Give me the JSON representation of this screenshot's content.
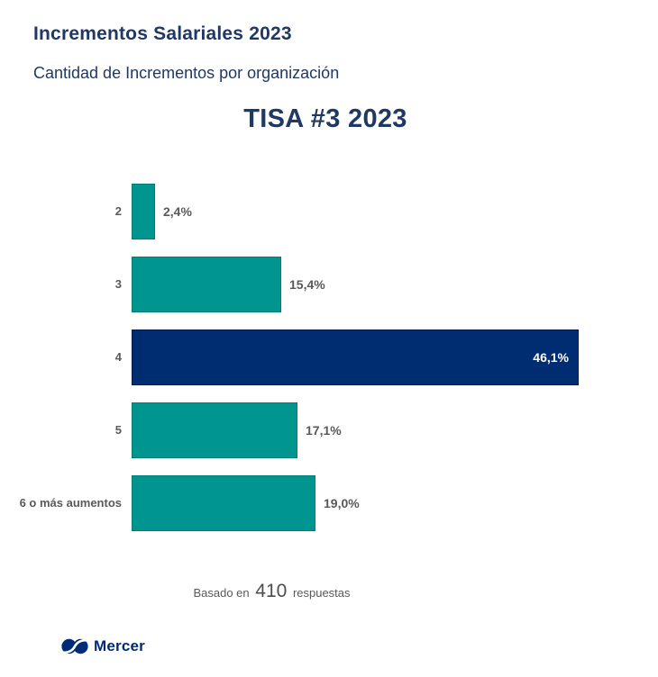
{
  "page": {
    "title": "Incrementos Salariales 2023",
    "subtitle": "Cantidad de Incrementos por organización"
  },
  "chart_data": {
    "type": "bar",
    "orientation": "horizontal",
    "title": "TISA #3 2023",
    "categories": [
      "2",
      "3",
      "4",
      "5",
      "6 o más aumentos"
    ],
    "values": [
      2.4,
      15.4,
      46.1,
      17.1,
      19.0
    ],
    "value_labels": [
      "2,4%",
      "15,4%",
      "46,1%",
      "17,1%",
      "19,0%"
    ],
    "highlight_index": 2,
    "xlim": [
      0,
      50
    ],
    "grid": false,
    "legend": false,
    "bar_color": "#00958F",
    "bar_border_color": "#007C77",
    "highlight_color": "#002D72",
    "highlight_border_color": "#001A4E",
    "category_label_color": "#595959",
    "value_label_color": "#595959",
    "value_label_inside_color": "#FFFFFF"
  },
  "footer": {
    "prefix": "Basado en",
    "count": "410",
    "suffix": "respuestas"
  },
  "branding": {
    "logo_text": "Mercer",
    "logo_color": "#002C77",
    "logo_icon": "mercer-infinity-mark"
  },
  "colors": {
    "title": "#1F3864",
    "background": "#FFFFFF"
  }
}
